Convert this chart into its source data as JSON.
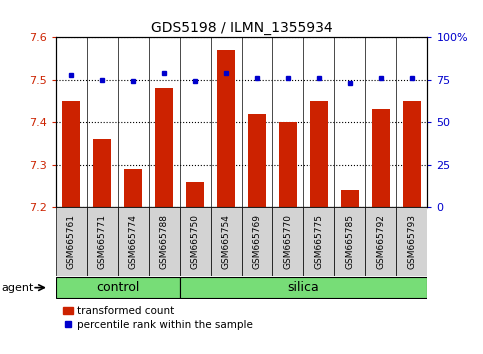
{
  "title": "GDS5198 / ILMN_1355934",
  "samples": [
    "GSM665761",
    "GSM665771",
    "GSM665774",
    "GSM665788",
    "GSM665750",
    "GSM665754",
    "GSM665769",
    "GSM665770",
    "GSM665775",
    "GSM665785",
    "GSM665792",
    "GSM665793"
  ],
  "red_values": [
    7.45,
    7.36,
    7.29,
    7.48,
    7.26,
    7.57,
    7.42,
    7.4,
    7.45,
    7.24,
    7.43,
    7.45
  ],
  "blue_values": [
    78,
    75,
    74,
    79,
    74,
    79,
    76,
    76,
    76,
    73,
    76,
    76
  ],
  "ylim_left": [
    7.2,
    7.6
  ],
  "ylim_right": [
    0,
    100
  ],
  "yticks_left": [
    7.2,
    7.3,
    7.4,
    7.5,
    7.6
  ],
  "yticks_right": [
    0,
    25,
    50,
    75,
    100
  ],
  "ytick_labels_right": [
    "0",
    "25",
    "50",
    "75",
    "100%"
  ],
  "control_count": 4,
  "silica_count": 8,
  "control_label": "control",
  "silica_label": "silica",
  "agent_label": "agent",
  "legend_red": "transformed count",
  "legend_blue": "percentile rank within the sample",
  "bar_color": "#cc2200",
  "dot_color": "#0000cc",
  "group_bg": "#77dd77",
  "label_box_bg": "#d3d3d3",
  "bar_width": 0.6,
  "base_value": 7.2
}
